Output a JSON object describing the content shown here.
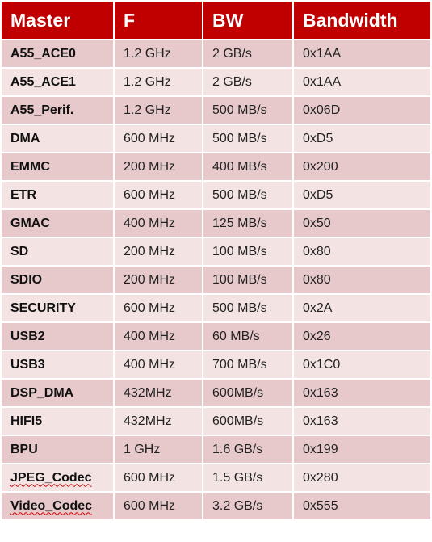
{
  "table": {
    "header": [
      "Master",
      "F",
      "BW",
      "Bandwidth"
    ],
    "rows": [
      [
        "A55_ACE0",
        "1.2 GHz",
        "2 GB/s",
        "0x1AA"
      ],
      [
        "A55_ACE1",
        "1.2 GHz",
        "2 GB/s",
        "0x1AA"
      ],
      [
        "A55_Perif.",
        "1.2 GHz",
        "500 MB/s",
        "0x06D"
      ],
      [
        "DMA",
        "600 MHz",
        "500 MB/s",
        "0xD5"
      ],
      [
        "EMMC",
        "200 MHz",
        "400 MB/s",
        "0x200"
      ],
      [
        "ETR",
        "600 MHz",
        "500 MB/s",
        "0xD5"
      ],
      [
        "GMAC",
        "400 MHz",
        "125 MB/s",
        "0x50"
      ],
      [
        "SD",
        "200 MHz",
        "100 MB/s",
        "0x80"
      ],
      [
        "SDIO",
        "200 MHz",
        "100 MB/s",
        "0x80"
      ],
      [
        "SECURITY",
        "600 MHz",
        "500 MB/s",
        "0x2A"
      ],
      [
        "USB2",
        "400 MHz",
        "60 MB/s",
        "0x26"
      ],
      [
        "USB3",
        "400 MHz",
        "700 MB/s",
        "0x1C0"
      ],
      [
        "DSP_DMA",
        "432MHz",
        "600MB/s",
        "0x163"
      ],
      [
        "HIFI5",
        "432MHz",
        "600MB/s",
        "0x163"
      ],
      [
        "BPU",
        "1 GHz",
        "1.6 GB/s",
        "0x199"
      ],
      [
        "JPEG_Codec",
        "600 MHz",
        "1.5 GB/s",
        "0x280"
      ],
      [
        "Video_Codec",
        "600 MHz",
        "3.2 GB/s",
        "0x555"
      ]
    ]
  }
}
